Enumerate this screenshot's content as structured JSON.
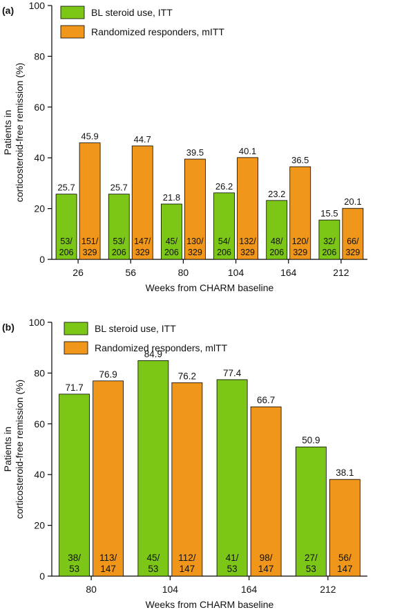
{
  "colors": {
    "green": "#7cc618",
    "orange": "#f0961a"
  },
  "chart_data": [
    {
      "panel": "(a)",
      "type": "bar",
      "categories": [
        "26",
        "56",
        "80",
        "104",
        "164",
        "212"
      ],
      "xlabel": "Weeks from CHARM baseline",
      "ylabel": [
        "Patients in",
        "corticosteroid-free remission (%)"
      ],
      "ylim": [
        0,
        100
      ],
      "yticks": [
        "0",
        "20",
        "40",
        "60",
        "80",
        "100"
      ],
      "legend": [
        "BL steroid use, ITT",
        "Randomized responders, mITT"
      ],
      "series": [
        {
          "name": "BL steroid use, ITT",
          "values": [
            25.7,
            25.7,
            21.8,
            26.2,
            23.2,
            15.5
          ],
          "value_labels": [
            "25.7",
            "25.7",
            "21.8",
            "26.2",
            "23.2",
            "15.5"
          ],
          "n_top": [
            "53/",
            "53/",
            "45/",
            "54/",
            "48/",
            "32/"
          ],
          "n_bottom": [
            "206",
            "206",
            "206",
            "206",
            "206",
            "206"
          ]
        },
        {
          "name": "Randomized responders, mITT",
          "values": [
            45.9,
            44.7,
            39.5,
            40.1,
            36.5,
            20.1
          ],
          "value_labels": [
            "45.9",
            "44.7",
            "39.5",
            "40.1",
            "36.5",
            "20.1"
          ],
          "n_top": [
            "151/",
            "147/",
            "130/",
            "132/",
            "120/",
            "66/"
          ],
          "n_bottom": [
            "329",
            "329",
            "329",
            "329",
            "329",
            "329"
          ]
        }
      ]
    },
    {
      "panel": "(b)",
      "type": "bar",
      "categories": [
        "80",
        "104",
        "164",
        "212"
      ],
      "xlabel": "Weeks from CHARM baseline",
      "ylabel": [
        "Patients in",
        "corticosteroid-free remission (%)"
      ],
      "ylim": [
        0,
        100
      ],
      "yticks": [
        "0",
        "20",
        "40",
        "60",
        "80",
        "100"
      ],
      "legend": [
        "BL steroid use, ITT",
        "Randomized responders, mlTT"
      ],
      "series": [
        {
          "name": "BL steroid use, ITT",
          "values": [
            71.7,
            84.9,
            77.4,
            50.9
          ],
          "value_labels": [
            "71.7",
            "84.9",
            "77.4",
            "50.9"
          ],
          "n_top": [
            "38/",
            "45/",
            "41/",
            "27/"
          ],
          "n_bottom": [
            "53",
            "53",
            "53",
            "53"
          ]
        },
        {
          "name": "Randomized responders, mlTT",
          "values": [
            76.9,
            76.2,
            66.7,
            38.1
          ],
          "value_labels": [
            "76.9",
            "76.2",
            "66.7",
            "38.1"
          ],
          "n_top": [
            "113/",
            "112/",
            "98/",
            "56/"
          ],
          "n_bottom": [
            "147",
            "147",
            "147",
            "147"
          ]
        }
      ]
    }
  ]
}
